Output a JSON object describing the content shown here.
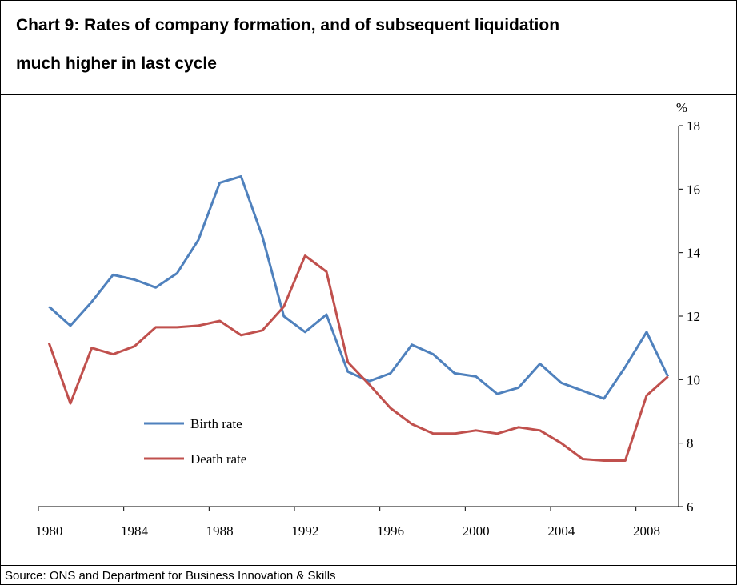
{
  "chart_data": {
    "type": "line",
    "title_lines": [
      "Chart 9:  Rates of company formation, and of subsequent liquidation",
      "much higher in last cycle"
    ],
    "source": "Source:  ONS and Department for Business Innovation & Skills",
    "y_unit": "%",
    "categories": [
      "1980",
      null,
      null,
      null,
      "1984",
      null,
      null,
      null,
      "1988",
      null,
      null,
      null,
      "1992",
      null,
      null,
      null,
      "1996",
      null,
      null,
      null,
      "2000",
      null,
      null,
      null,
      "2004",
      null,
      null,
      null,
      "2008",
      null
    ],
    "series": [
      {
        "name": "Birth rate",
        "color": "#4f81bd",
        "values": [
          12.3,
          11.7,
          12.45,
          13.3,
          13.15,
          12.9,
          13.35,
          14.4,
          16.2,
          16.4,
          14.5,
          12.0,
          11.5,
          12.05,
          10.25,
          9.95,
          10.2,
          11.1,
          10.8,
          10.2,
          10.1,
          9.55,
          9.75,
          10.5,
          9.9,
          9.65,
          9.4,
          10.4,
          11.5,
          10.1
        ]
      },
      {
        "name": "Death rate",
        "color": "#c0504d",
        "values": [
          11.15,
          9.25,
          11.0,
          10.8,
          11.05,
          11.65,
          11.65,
          11.7,
          11.85,
          11.4,
          11.55,
          12.3,
          13.9,
          13.4,
          10.55,
          9.85,
          9.1,
          8.6,
          8.3,
          8.3,
          8.4,
          8.3,
          8.5,
          8.4,
          8.0,
          7.5,
          7.45,
          7.45,
          9.5,
          10.1
        ]
      }
    ],
    "ylim": [
      6,
      18
    ],
    "yticks": [
      6,
      8,
      10,
      12,
      14,
      16,
      18
    ],
    "y_axis_side": "right"
  }
}
